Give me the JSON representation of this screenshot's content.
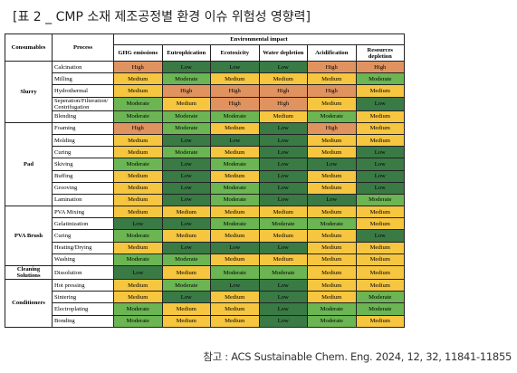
{
  "title": "[표 2 _ CMP 소재 제조공정별 환경 이슈 위험성 영향력]",
  "source": "참고 : ACS Sustainable Chem. Eng. 2024, 12, 32, 11841-11855",
  "table": {
    "headers": {
      "consumables": "Consumables",
      "process": "Process",
      "group": "Environmental impact",
      "impacts": [
        "GHG emissions",
        "Eutrophication",
        "Ecotoxicity",
        "Water depletion",
        "Acidification",
        "Resources depletion"
      ]
    },
    "level_colors": {
      "High": "#e0935f",
      "Medium": "#f6c640",
      "Moderate": "#6bb553",
      "Low": "#3a7a45"
    },
    "groups": [
      {
        "consumable": "Slurry",
        "processes": [
          {
            "name": "Calcination",
            "levels": [
              "High",
              "Low",
              "Low",
              "Low",
              "High",
              "High"
            ]
          },
          {
            "name": "Milling",
            "levels": [
              "Medium",
              "Moderate",
              "Medium",
              "Medium",
              "Medium",
              "Moderate"
            ]
          },
          {
            "name": "Hydrothermal",
            "levels": [
              "Medium",
              "High",
              "High",
              "High",
              "High",
              "Medium"
            ]
          },
          {
            "name": "Seperation/Filteration/ Centrifugation",
            "levels": [
              "Moderate",
              "Medium",
              "High",
              "High",
              "Medium",
              "Low"
            ]
          },
          {
            "name": "Blending",
            "levels": [
              "Moderate",
              "Moderate",
              "Moderate",
              "Medium",
              "Moderate",
              "Medium"
            ]
          }
        ]
      },
      {
        "consumable": "Pad",
        "processes": [
          {
            "name": "Foaming",
            "levels": [
              "High",
              "Moderate",
              "Medium",
              "Low",
              "High",
              "Medium"
            ]
          },
          {
            "name": "Molding",
            "levels": [
              "Medium",
              "Low",
              "Low",
              "Low",
              "Medium",
              "Medium"
            ]
          },
          {
            "name": "Curing",
            "levels": [
              "Medium",
              "Moderate",
              "Medium",
              "Low",
              "Medium",
              "Low"
            ]
          },
          {
            "name": "Skiving",
            "levels": [
              "Moderate",
              "Low",
              "Moderate",
              "Low",
              "Low",
              "Low"
            ]
          },
          {
            "name": "Buffing",
            "levels": [
              "Medium",
              "Low",
              "Medium",
              "Low",
              "Medium",
              "Low"
            ]
          },
          {
            "name": "Grooving",
            "levels": [
              "Medium",
              "Low",
              "Moderate",
              "Low",
              "Medium",
              "Low"
            ]
          },
          {
            "name": "Lamination",
            "levels": [
              "Medium",
              "Low",
              "Moderate",
              "Low",
              "Low",
              "Moderate"
            ]
          }
        ]
      },
      {
        "consumable": "PVA Brush",
        "processes": [
          {
            "name": "PVA Mixing",
            "levels": [
              "Medium",
              "Medium",
              "Medium",
              "Medium",
              "Medium",
              "Medium"
            ]
          },
          {
            "name": "Gelatinization",
            "levels": [
              "Low",
              "Low",
              "Moderate",
              "Moderate",
              "Moderate",
              "Medium"
            ]
          },
          {
            "name": "Curing",
            "levels": [
              "Moderate",
              "Medium",
              "Medium",
              "Medium",
              "Medium",
              "Low"
            ]
          },
          {
            "name": "Heating/Drying",
            "levels": [
              "Medium",
              "Low",
              "Low",
              "Low",
              "Medium",
              "Medium"
            ]
          },
          {
            "name": "Washing",
            "levels": [
              "Moderate",
              "Moderate",
              "Medium",
              "Medium",
              "Medium",
              "Medium"
            ]
          }
        ]
      },
      {
        "consumable": "Cleaning Solutions",
        "processes": [
          {
            "name": "Dissolution",
            "levels": [
              "Low",
              "Medium",
              "Moderate",
              "Moderate",
              "Medium",
              "Medium"
            ]
          }
        ]
      },
      {
        "consumable": "Conditioners",
        "processes": [
          {
            "name": "Hot pressing",
            "levels": [
              "Medium",
              "Moderate",
              "Low",
              "Low",
              "Medium",
              "Medium"
            ]
          },
          {
            "name": "Sintering",
            "levels": [
              "Medium",
              "Low",
              "Medium",
              "Low",
              "Medium",
              "Moderate"
            ]
          },
          {
            "name": "Electroplating",
            "levels": [
              "Moderate",
              "Medium",
              "Medium",
              "Low",
              "Moderate",
              "Moderate"
            ]
          },
          {
            "name": "Bonding",
            "levels": [
              "Moderate",
              "Medium",
              "Medium",
              "Low",
              "Moderate",
              "Medium"
            ]
          }
        ]
      }
    ]
  }
}
